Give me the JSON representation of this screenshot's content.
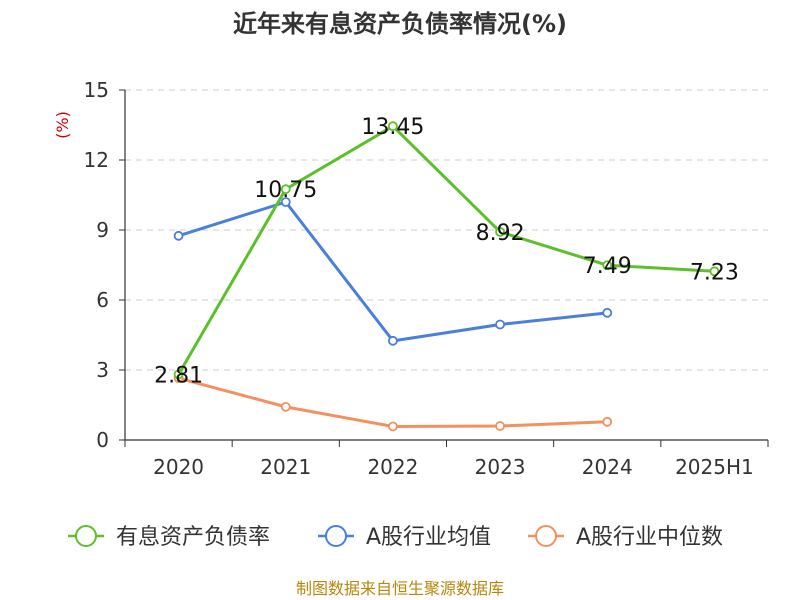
{
  "chart_data": {
    "type": "line",
    "title": "近年来有息资产负债率情况(%)",
    "ylabel": "(%)",
    "categories": [
      "2020",
      "2021",
      "2022",
      "2023",
      "2024",
      "2025H1"
    ],
    "ylim": [
      0,
      15
    ],
    "yticks": [
      0,
      3,
      6,
      9,
      12,
      15
    ],
    "grid": true,
    "legend_position": "bottom",
    "series": [
      {
        "name": "有息资产负债率",
        "color": "#5cc02a",
        "values": [
          2.81,
          10.75,
          13.45,
          8.92,
          7.49,
          7.23
        ],
        "labels": [
          "2.81",
          "10.75",
          "13.45",
          "8.92",
          "7.49",
          "7.23"
        ]
      },
      {
        "name": "A股行业均值",
        "color": "#4a7fdc",
        "values": [
          8.75,
          10.2,
          4.25,
          4.95,
          5.45,
          null
        ]
      },
      {
        "name": "A股行业中位数",
        "color": "#f39060",
        "values": [
          2.65,
          1.42,
          0.58,
          0.6,
          0.78,
          null
        ]
      }
    ]
  },
  "footer": {
    "source": "制图数据来自恒生聚源数据库"
  }
}
